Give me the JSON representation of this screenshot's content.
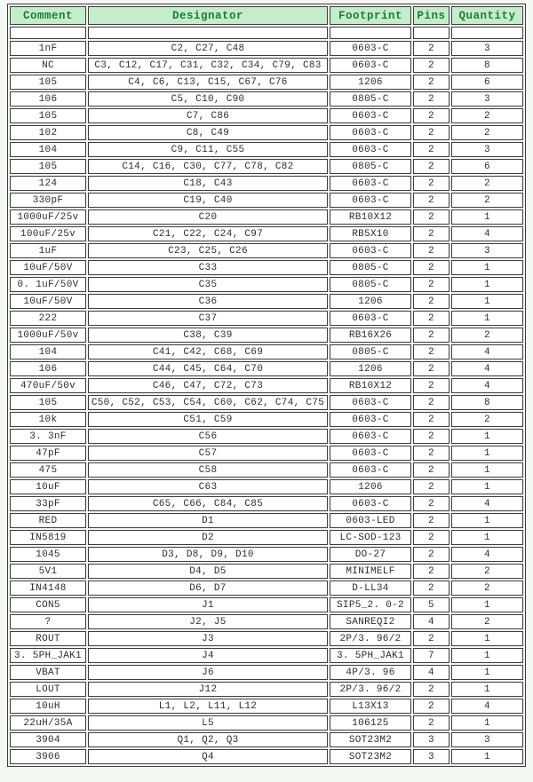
{
  "theme": {
    "page_bg": "#f3f8f2",
    "header_bg": "#c5edcb",
    "header_text": "#1e7b33",
    "border": "#3d3d3d",
    "cell_bg": "#ffffff",
    "text": "#2e2e2e"
  },
  "table": {
    "columns": [
      {
        "key": "comment",
        "label": "Comment"
      },
      {
        "key": "designator",
        "label": "Designator"
      },
      {
        "key": "footprint",
        "label": "Footprint"
      },
      {
        "key": "pins",
        "label": "Pins"
      },
      {
        "key": "quantity",
        "label": "Quantity"
      }
    ],
    "rows": [
      {
        "comment": "1nF",
        "designator": "C2, C27, C48",
        "footprint": "0603-C",
        "pins": "2",
        "quantity": "3"
      },
      {
        "comment": "NC",
        "designator": "C3, C12, C17, C31, C32, C34, C79, C83",
        "footprint": "0603-C",
        "pins": "2",
        "quantity": "8"
      },
      {
        "comment": "105",
        "designator": "C4, C6, C13, C15, C67, C76",
        "footprint": "1206",
        "pins": "2",
        "quantity": "6"
      },
      {
        "comment": "106",
        "designator": "C5, C10, C90",
        "footprint": "0805-C",
        "pins": "2",
        "quantity": "3"
      },
      {
        "comment": "105",
        "designator": "C7, C86",
        "footprint": "0603-C",
        "pins": "2",
        "quantity": "2"
      },
      {
        "comment": "102",
        "designator": "C8, C49",
        "footprint": "0603-C",
        "pins": "2",
        "quantity": "2"
      },
      {
        "comment": "104",
        "designator": "C9, C11, C55",
        "footprint": "0603-C",
        "pins": "2",
        "quantity": "3"
      },
      {
        "comment": "105",
        "designator": "C14, C16, C30, C77, C78, C82",
        "footprint": "0805-C",
        "pins": "2",
        "quantity": "6"
      },
      {
        "comment": "124",
        "designator": "C18, C43",
        "footprint": "0603-C",
        "pins": "2",
        "quantity": "2"
      },
      {
        "comment": "330pF",
        "designator": "C19, C40",
        "footprint": "0603-C",
        "pins": "2",
        "quantity": "2"
      },
      {
        "comment": "1000uF/25v",
        "designator": "C20",
        "footprint": "RB10X12",
        "pins": "2",
        "quantity": "1"
      },
      {
        "comment": "100uF/25v",
        "designator": "C21, C22, C24, C97",
        "footprint": "RB5X10",
        "pins": "2",
        "quantity": "4"
      },
      {
        "comment": "1uF",
        "designator": "C23, C25, C26",
        "footprint": "0603-C",
        "pins": "2",
        "quantity": "3"
      },
      {
        "comment": "10uF/50V",
        "designator": "C33",
        "footprint": "0805-C",
        "pins": "2",
        "quantity": "1"
      },
      {
        "comment": "0. 1uF/50V",
        "designator": "C35",
        "footprint": "0805-C",
        "pins": "2",
        "quantity": "1"
      },
      {
        "comment": "10uF/50V",
        "designator": "C36",
        "footprint": "1206",
        "pins": "2",
        "quantity": "1"
      },
      {
        "comment": "222",
        "designator": "C37",
        "footprint": "0603-C",
        "pins": "2",
        "quantity": "1"
      },
      {
        "comment": "1000uF/50v",
        "designator": "C38, C39",
        "footprint": "RB16X26",
        "pins": "2",
        "quantity": "2"
      },
      {
        "comment": "104",
        "designator": "C41, C42, C68, C69",
        "footprint": "0805-C",
        "pins": "2",
        "quantity": "4"
      },
      {
        "comment": "106",
        "designator": "C44, C45, C64, C70",
        "footprint": "1206",
        "pins": "2",
        "quantity": "4"
      },
      {
        "comment": "470uF/50v",
        "designator": "C46, C47, C72, C73",
        "footprint": "RB10X12",
        "pins": "2",
        "quantity": "4"
      },
      {
        "comment": "105",
        "designator": "C50, C52, C53, C54, C60, C62, C74, C75",
        "footprint": "0603-C",
        "pins": "2",
        "quantity": "8"
      },
      {
        "comment": "10k",
        "designator": "C51, C59",
        "footprint": "0603-C",
        "pins": "2",
        "quantity": "2"
      },
      {
        "comment": "3. 3nF",
        "designator": "C56",
        "footprint": "0603-C",
        "pins": "2",
        "quantity": "1"
      },
      {
        "comment": "47pF",
        "designator": "C57",
        "footprint": "0603-C",
        "pins": "2",
        "quantity": "1"
      },
      {
        "comment": "475",
        "designator": "C58",
        "footprint": "0603-C",
        "pins": "2",
        "quantity": "1"
      },
      {
        "comment": "10uF",
        "designator": "C63",
        "footprint": "1206",
        "pins": "2",
        "quantity": "1"
      },
      {
        "comment": "33pF",
        "designator": "C65, C66, C84, C85",
        "footprint": "0603-C",
        "pins": "2",
        "quantity": "4"
      },
      {
        "comment": "RED",
        "designator": "D1",
        "footprint": "0603-LED",
        "pins": "2",
        "quantity": "1"
      },
      {
        "comment": "IN5819",
        "designator": "D2",
        "footprint": "LC-SOD-123",
        "pins": "2",
        "quantity": "1"
      },
      {
        "comment": "1045",
        "designator": "D3, D8, D9, D10",
        "footprint": "DO-27",
        "pins": "2",
        "quantity": "4"
      },
      {
        "comment": "5V1",
        "designator": "D4, D5",
        "footprint": "MINIMELF",
        "pins": "2",
        "quantity": "2"
      },
      {
        "comment": "IN4148",
        "designator": "D6, D7",
        "footprint": "D-LL34",
        "pins": "2",
        "quantity": "2"
      },
      {
        "comment": "CON5",
        "designator": "J1",
        "footprint": "SIP5_2. 0-2",
        "pins": "5",
        "quantity": "1"
      },
      {
        "comment": "?",
        "designator": "J2, J5",
        "footprint": "SANREQI2",
        "pins": "4",
        "quantity": "2"
      },
      {
        "comment": "ROUT",
        "designator": "J3",
        "footprint": "2P/3. 96/2",
        "pins": "2",
        "quantity": "1"
      },
      {
        "comment": "3. 5PH_JAK1",
        "designator": "J4",
        "footprint": "3. 5PH_JAK1",
        "pins": "7",
        "quantity": "1"
      },
      {
        "comment": "VBAT",
        "designator": "J6",
        "footprint": "4P/3. 96",
        "pins": "4",
        "quantity": "1"
      },
      {
        "comment": "LOUT",
        "designator": "J12",
        "footprint": "2P/3. 96/2",
        "pins": "2",
        "quantity": "1"
      },
      {
        "comment": "10uH",
        "designator": "L1, L2, L11, L12",
        "footprint": "L13X13",
        "pins": "2",
        "quantity": "4"
      },
      {
        "comment": "22uH/35A",
        "designator": "L5",
        "footprint": "106125",
        "pins": "2",
        "quantity": "1"
      },
      {
        "comment": "3904",
        "designator": "Q1, Q2, Q3",
        "footprint": "SOT23M2",
        "pins": "3",
        "quantity": "3"
      },
      {
        "comment": "3906",
        "designator": "Q4",
        "footprint": "SOT23M2",
        "pins": "3",
        "quantity": "1"
      }
    ]
  }
}
